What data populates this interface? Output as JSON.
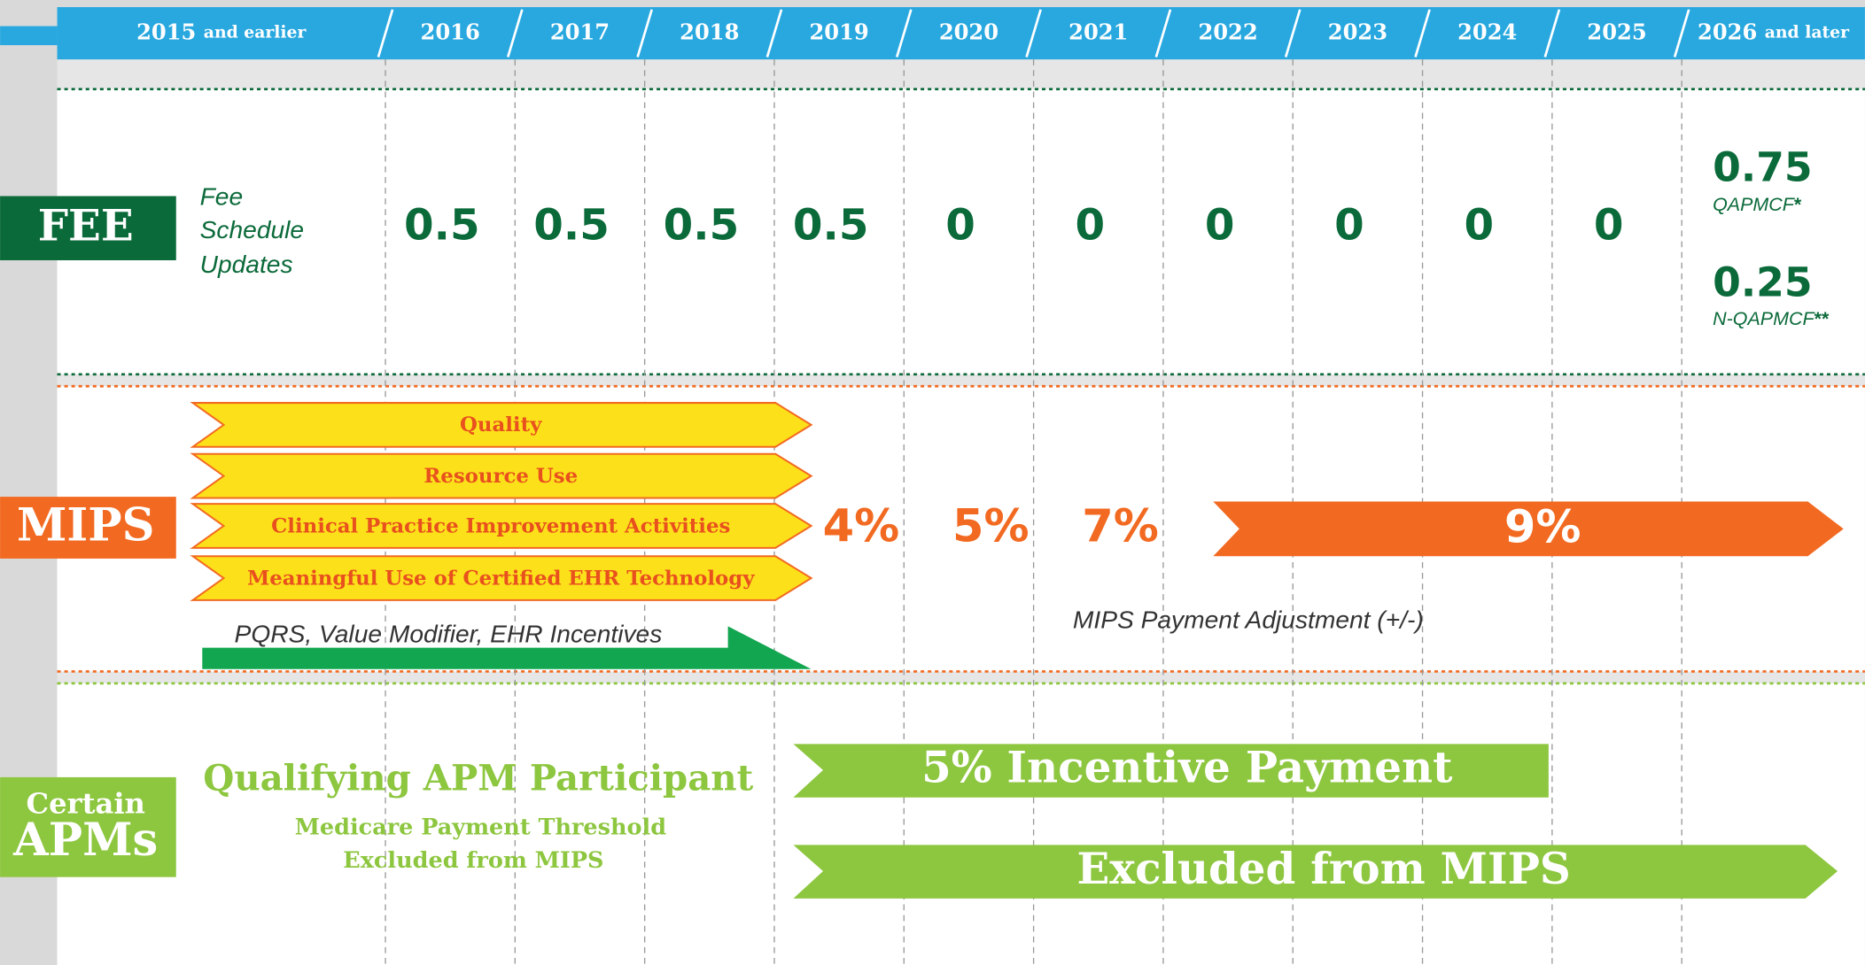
{
  "timeline": [
    {
      "year": "2015",
      "note": "and earlier"
    },
    {
      "year": "2016"
    },
    {
      "year": "2017"
    },
    {
      "year": "2018"
    },
    {
      "year": "2019"
    },
    {
      "year": "2020"
    },
    {
      "year": "2021"
    },
    {
      "year": "2022"
    },
    {
      "year": "2023"
    },
    {
      "year": "2024"
    },
    {
      "year": "2025"
    },
    {
      "year": "2026",
      "note": "and later"
    }
  ],
  "fee": {
    "label": "FEE",
    "title_lines": [
      "Fee",
      "Schedule",
      "Updates"
    ],
    "values": [
      0.5,
      0.5,
      0.5,
      0.5,
      0,
      0,
      0,
      0,
      0,
      0
    ],
    "final": [
      {
        "value": 0.75,
        "name": "QAPMCF",
        "mark": "*"
      },
      {
        "value": 0.25,
        "name": "N-QAPMCF",
        "mark": "**"
      }
    ]
  },
  "mips": {
    "label": "MIPS",
    "categories": [
      "Quality",
      "Resource Use",
      "Clinical Practice Improvement Activities",
      "Meaningful Use of Certified EHR Technology"
    ],
    "legacy": "PQRS, Value Modifier, EHR Incentives",
    "adjustments": [
      "4%",
      "5%",
      "7%",
      "9%"
    ],
    "caption": "MIPS Payment Adjustment (+/-)"
  },
  "apms": {
    "label_lines": [
      "Certain",
      "APMs"
    ],
    "title": "Qualifying APM Participant",
    "subtitle_lines": [
      "Medicare Payment Threshold",
      "Excluded from MIPS"
    ],
    "incentive": "5% Incentive Payment",
    "exclusion": "Excluded from MIPS"
  }
}
